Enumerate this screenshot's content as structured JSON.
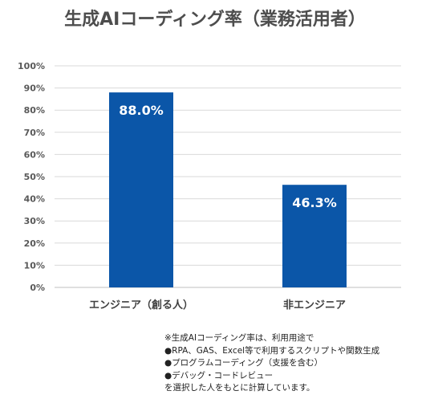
{
  "chart_data": {
    "type": "bar",
    "title": "生成AIコーディング率（業務活用者）",
    "categories": [
      "エンジニア（創る人）",
      "非エンジニア"
    ],
    "values": [
      88.0,
      46.3
    ],
    "data_labels": [
      "88.0%",
      "46.3%"
    ],
    "ylim": [
      0,
      100
    ],
    "yticks": [
      "0%",
      "10%",
      "20%",
      "30%",
      "40%",
      "50%",
      "60%",
      "70%",
      "80%",
      "90%",
      "100%"
    ],
    "grid": true,
    "legend": "none",
    "bar_color": "#0b56a8",
    "label_color": "#ffffff"
  },
  "note": {
    "lines": [
      "※生成AIコーディング率は、利用用途で",
      "●RPA、GAS、Excel等で利用するスクリプトや関数生成",
      "●プログラムコーディング（支援を含む）",
      "●デバッグ・コードレビュー",
      "を選択した人をもとに計算しています。"
    ]
  }
}
